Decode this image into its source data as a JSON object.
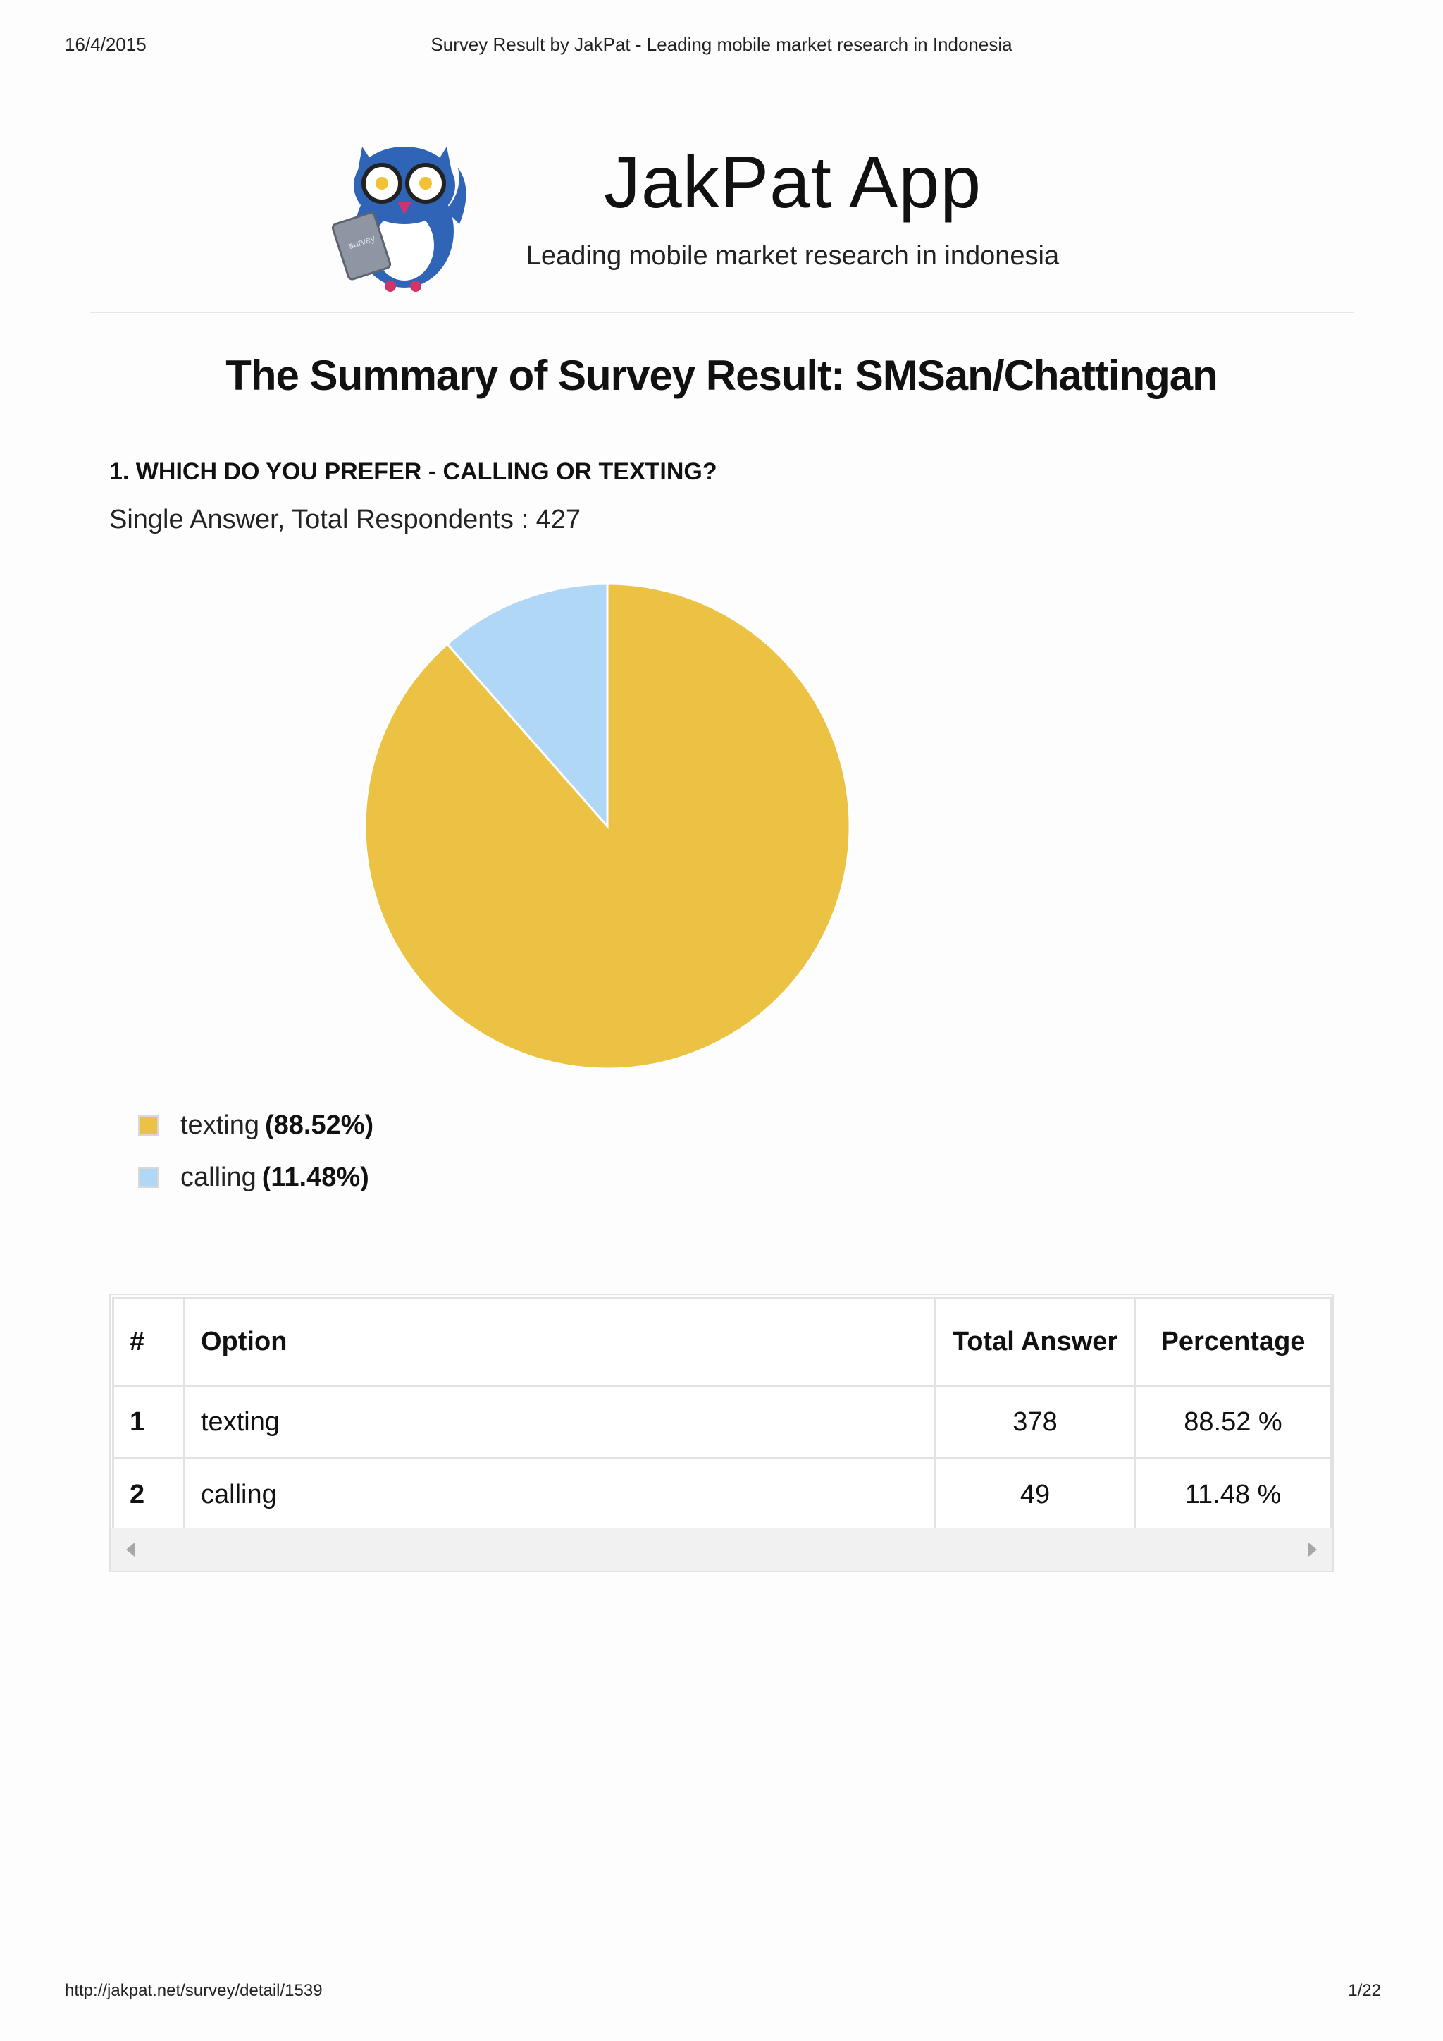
{
  "print_header": {
    "date": "16/4/2015",
    "title": "Survey Result by JakPat - Leading mobile market research in Indonesia"
  },
  "print_footer": {
    "url": "http://jakpat.net/survey/detail/1539",
    "page": "1/22"
  },
  "brand": {
    "logo_text": "survey",
    "title": "JakPat App",
    "subtitle": "Leading mobile market research in indonesia"
  },
  "summary_title": "The Summary of Survey Result: SMSan/Chattingan",
  "question": {
    "title": "1. WHICH DO YOU PREFER - CALLING OR TEXTING?",
    "meta": "Single Answer, Total Respondents : 427"
  },
  "colors": {
    "texting": "#ecc244",
    "calling": "#b0d7f6"
  },
  "chart_data": {
    "type": "pie",
    "title": "",
    "categories": [
      "texting",
      "calling"
    ],
    "values": [
      88.52,
      11.48
    ],
    "legend": [
      {
        "label": "texting",
        "pct": "(88.52%)"
      },
      {
        "label": "calling",
        "pct": "(11.48%)"
      }
    ],
    "legend_position": "bottom-left"
  },
  "table": {
    "headers": [
      "#",
      "Option",
      "Total Answer",
      "Percentage"
    ],
    "rows": [
      {
        "num": "1",
        "option": "texting",
        "total": "378",
        "percentage": "88.52 %"
      },
      {
        "num": "2",
        "option": "calling",
        "total": "49",
        "percentage": "11.48 %"
      }
    ]
  }
}
